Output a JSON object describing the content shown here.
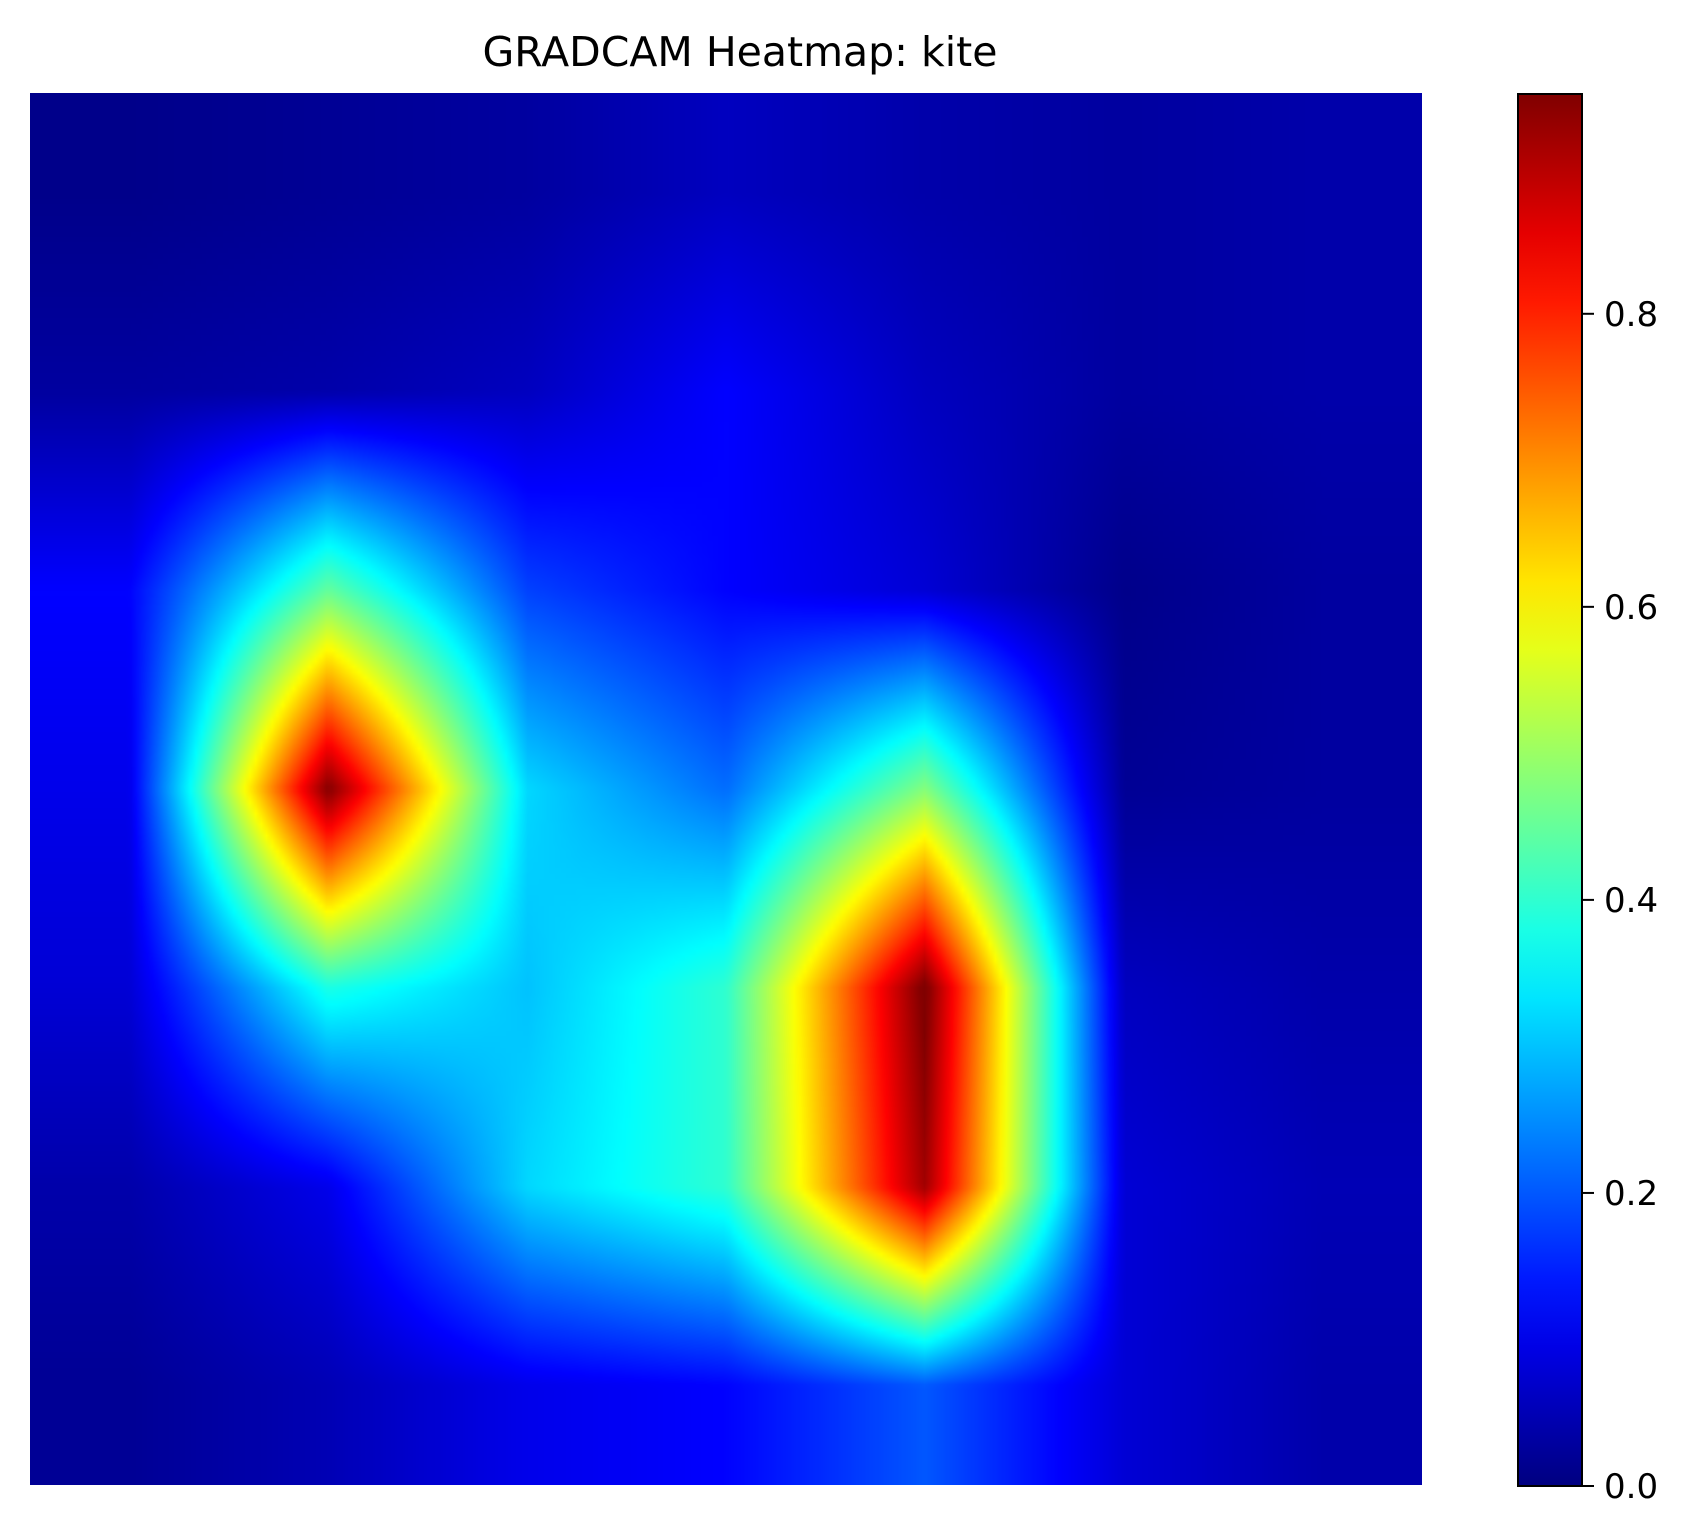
{
  "chart_data": {
    "type": "heatmap",
    "title": "GRADCAM Heatmap: kite",
    "colormap": "jet",
    "axes_visible": false,
    "value_range": [
      0.0,
      0.95
    ],
    "colorbar": {
      "placement": "right",
      "ticks": [
        0.0,
        0.2,
        0.4,
        0.6,
        0.8
      ],
      "tick_labels": [
        "0.0",
        "0.2",
        "0.4",
        "0.6",
        "0.8"
      ]
    },
    "grid": {
      "rows": 7,
      "cols": 7,
      "values": [
        [
          0.01,
          0.02,
          0.03,
          0.06,
          0.04,
          0.03,
          0.04
        ],
        [
          0.03,
          0.04,
          0.06,
          0.12,
          0.06,
          0.03,
          0.04
        ],
        [
          0.12,
          0.45,
          0.18,
          0.12,
          0.08,
          0.01,
          0.03
        ],
        [
          0.1,
          0.95,
          0.32,
          0.22,
          0.48,
          0.02,
          0.03
        ],
        [
          0.08,
          0.38,
          0.3,
          0.4,
          0.96,
          0.06,
          0.04
        ],
        [
          0.04,
          0.1,
          0.32,
          0.4,
          0.92,
          0.08,
          0.05
        ],
        [
          0.02,
          0.05,
          0.1,
          0.12,
          0.2,
          0.08,
          0.04
        ]
      ]
    }
  }
}
